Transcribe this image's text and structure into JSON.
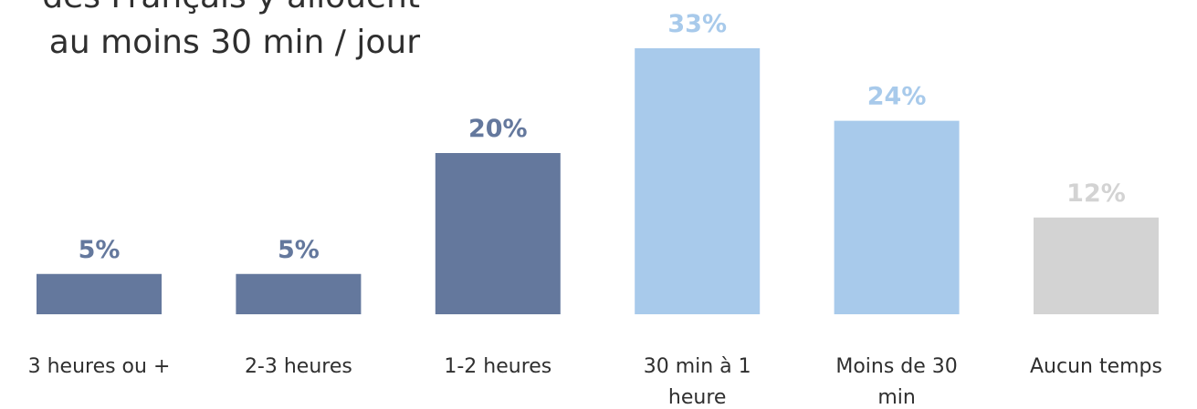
{
  "headline": {
    "line1": "des Français y allouent",
    "line2": "au moins 30 min / jour"
  },
  "chart_data": {
    "type": "bar",
    "categories": [
      "3 heures ou +",
      "2-3 heures",
      "1-2 heures",
      "30 min à 1 heure",
      "Moins de 30 min",
      "Aucun temps"
    ],
    "category_lines": [
      [
        "3 heures ou +"
      ],
      [
        "2-3 heures"
      ],
      [
        "1-2 heures"
      ],
      [
        "30 min à 1",
        "heure"
      ],
      [
        "Moins de 30",
        "min"
      ],
      [
        "Aucun temps"
      ]
    ],
    "values": [
      5,
      5,
      20,
      33,
      24,
      12
    ],
    "value_labels": [
      "5%",
      "5%",
      "20%",
      "33%",
      "24%",
      "12%"
    ],
    "unit": "%",
    "bar_colors": [
      "#64789d",
      "#64789d",
      "#64789d",
      "#a8caeb",
      "#a8caeb",
      "#d3d3d3"
    ],
    "label_colors": [
      "#64789d",
      "#64789d",
      "#64789d",
      "#a8caeb",
      "#a8caeb",
      "#d3d3d3"
    ],
    "ylim": [
      0,
      33
    ],
    "grid": false,
    "legend": "none"
  }
}
